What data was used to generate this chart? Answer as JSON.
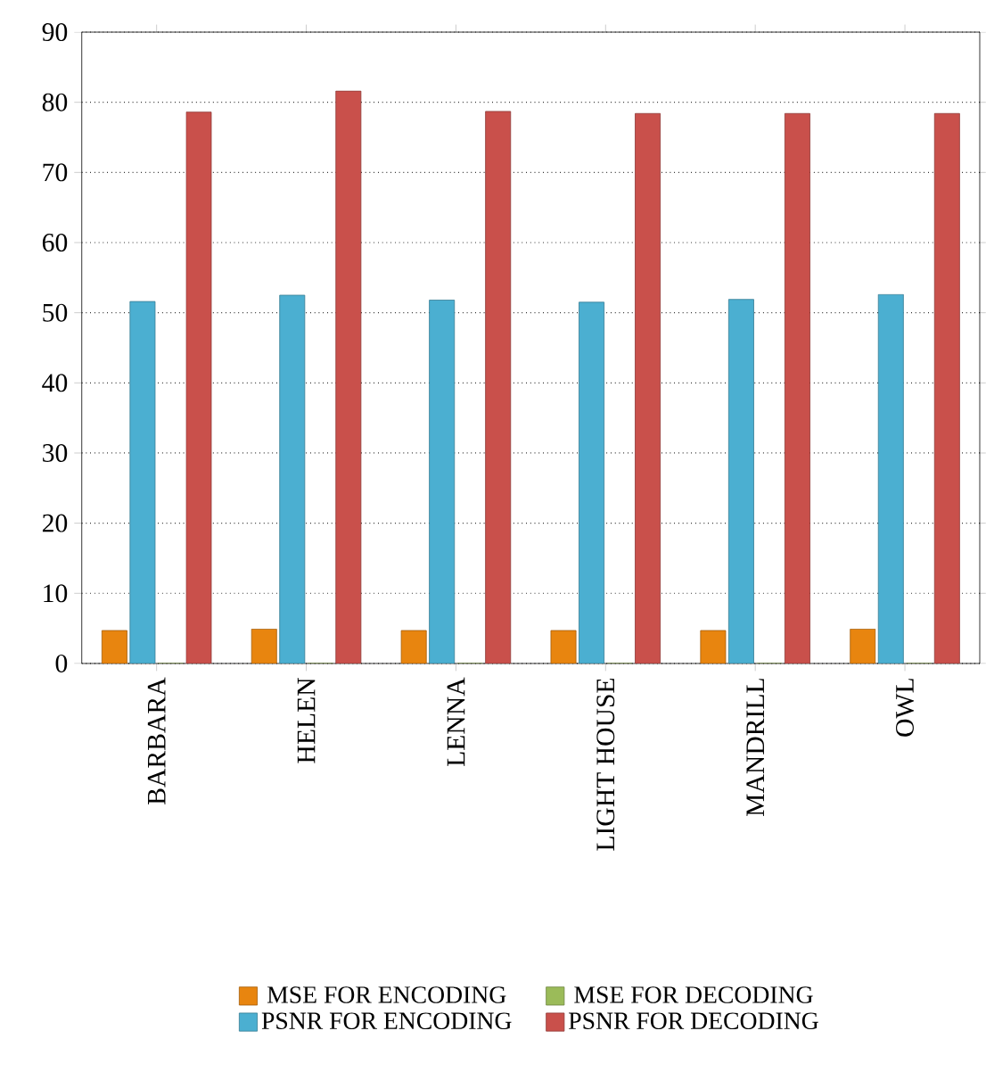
{
  "chart_data": {
    "type": "bar",
    "categories": [
      "BARBARA",
      "HELEN",
      "LENNA",
      "LIGHT HOUSE",
      "MANDRILL",
      "OWL"
    ],
    "series": [
      {
        "name": "MSE FOR ENCODING",
        "color": "#e8850f",
        "values": [
          4.7,
          4.9,
          4.7,
          4.7,
          4.7,
          4.9
        ]
      },
      {
        "name": "PSNR FOR ENCODING",
        "color": "#4bafd1",
        "values": [
          51.6,
          52.5,
          51.8,
          51.5,
          51.9,
          52.6
        ]
      },
      {
        "name": "MSE FOR DECODING",
        "color": "#9bbb59",
        "values": [
          0,
          0,
          0,
          0,
          0,
          0
        ]
      },
      {
        "name": "PSNR FOR DECODING",
        "color": "#c9504b",
        "values": [
          78.6,
          81.6,
          78.7,
          78.4,
          78.4,
          78.4
        ]
      }
    ],
    "ylim": [
      0,
      90
    ],
    "yticks": [
      0,
      10,
      20,
      30,
      40,
      50,
      60,
      70,
      80,
      90
    ],
    "grid": "y",
    "legend": "bottom"
  }
}
